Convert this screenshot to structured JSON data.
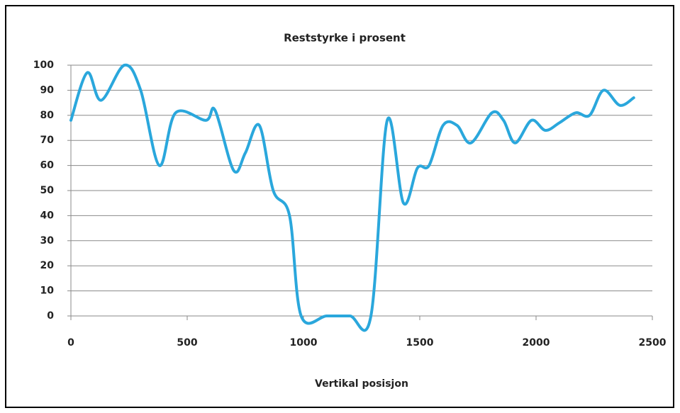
{
  "chart_data": {
    "type": "line",
    "title": "Reststyrke i prosent",
    "x_label": "Vertikal posisjon",
    "x": [
      0,
      70,
      130,
      230,
      300,
      380,
      450,
      580,
      620,
      700,
      750,
      810,
      870,
      940,
      990,
      1100,
      1200,
      1290,
      1360,
      1430,
      1490,
      1540,
      1600,
      1660,
      1720,
      1810,
      1860,
      1910,
      1980,
      2040,
      2100,
      2170,
      2230,
      2290,
      2360,
      2420
    ],
    "values": [
      78,
      97,
      86,
      100,
      90,
      60,
      81,
      78,
      82,
      58,
      65,
      76,
      50,
      40,
      0,
      0,
      0,
      0,
      78,
      45,
      59,
      60,
      76,
      76,
      69,
      81,
      78,
      69,
      78,
      74,
      77,
      81,
      80,
      90,
      84,
      87
    ],
    "color": "#2aa7dc",
    "xlim": [
      0,
      2500
    ],
    "xticks": [
      0,
      500,
      1000,
      1500,
      2000,
      2500
    ],
    "ylim": [
      0,
      100
    ],
    "yticks": [
      0,
      10,
      20,
      30,
      40,
      50,
      60,
      70,
      80,
      90,
      100
    ],
    "grid": true
  }
}
